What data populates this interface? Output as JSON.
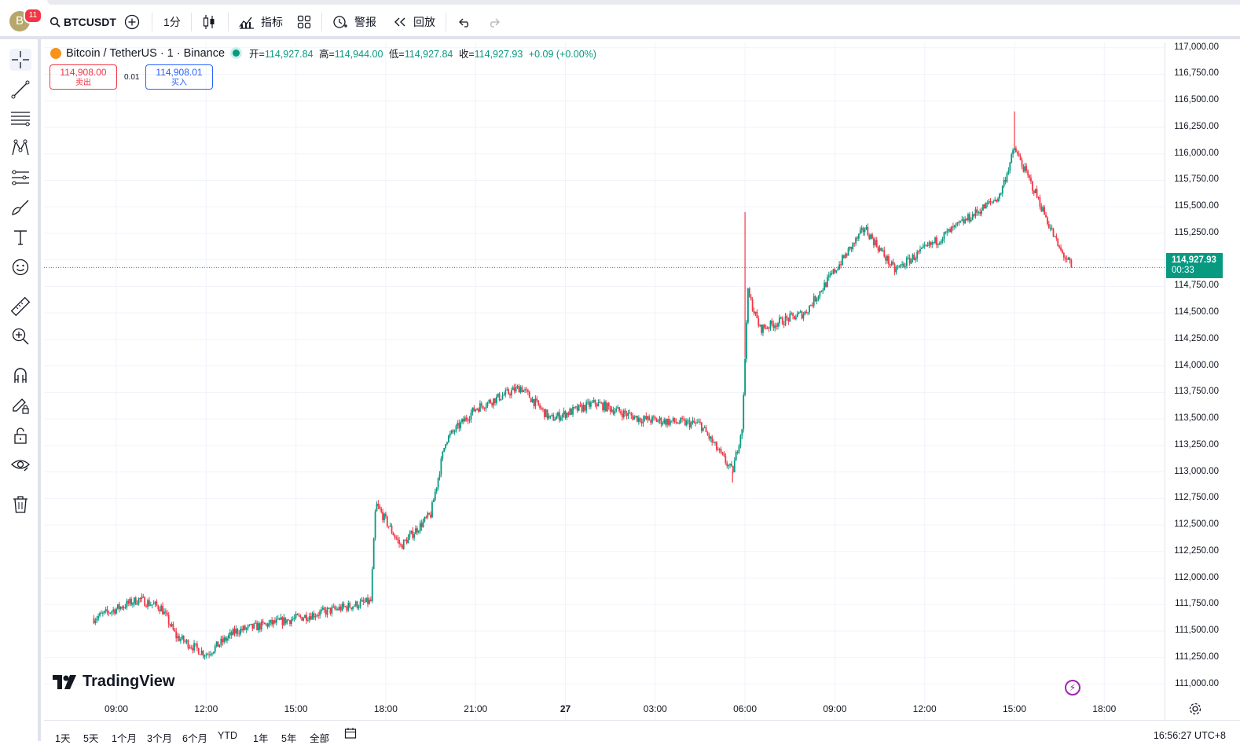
{
  "topbar": {
    "avatar_letter": "B",
    "notification_count": "11",
    "symbol": "BTCUSDT",
    "interval": "1分",
    "indicators_label": "指标",
    "alert_label": "警报",
    "replay_label": "回放"
  },
  "legend": {
    "title": "Bitcoin / TetherUS · 1 · Binance",
    "open_label": "开=",
    "open": "114,927.84",
    "high_label": "高=",
    "high": "114,944.00",
    "low_label": "低=",
    "low": "114,927.84",
    "close_label": "收=",
    "close": "114,927.93",
    "change": "+0.09 (+0.00%)"
  },
  "trade": {
    "sell_price": "114,908.00",
    "sell_label": "卖出",
    "spread": "0.01",
    "buy_price": "114,908.01",
    "buy_label": "买入"
  },
  "last_price": {
    "price": "114,927.93",
    "countdown": "00:33"
  },
  "brand": "TradingView",
  "price_axis_labels": [
    "117,000.00",
    "116,750.00",
    "116,500.00",
    "116,250.00",
    "116,000.00",
    "115,750.00",
    "115,500.00",
    "115,250.00",
    "115,000.00",
    "114,750.00",
    "114,500.00",
    "114,250.00",
    "114,000.00",
    "113,750.00",
    "113,500.00",
    "113,250.00",
    "113,000.00",
    "112,750.00",
    "112,500.00",
    "112,250.00",
    "112,000.00",
    "111,750.00",
    "111,500.00",
    "111,250.00",
    "111,000.00"
  ],
  "time_axis_labels": [
    "09:00",
    "12:00",
    "15:00",
    "18:00",
    "21:00",
    "27",
    "03:00",
    "06:00",
    "09:00",
    "12:00",
    "15:00",
    "18:00"
  ],
  "bottom": {
    "ranges": [
      "1天",
      "5天",
      "1个月",
      "3个月",
      "6个月",
      "YTD",
      "1年",
      "5年",
      "全部"
    ],
    "clock": "16:56:27 UTC+8"
  },
  "colors": {
    "up": "#089981",
    "down": "#f23645",
    "grid": "#f0f3fa"
  },
  "chart_data": {
    "type": "candlestick",
    "symbol": "BTCUSDT",
    "interval": "1",
    "ylim": [
      110900,
      117050
    ],
    "x_ticks": [
      "09:00",
      "12:00",
      "15:00",
      "18:00",
      "21:00",
      "27",
      "03:00",
      "06:00",
      "09:00",
      "12:00",
      "15:00",
      "18:00"
    ],
    "path_keypoints": [
      {
        "t": "08:15",
        "price": 111620
      },
      {
        "t": "09:45",
        "price": 111800
      },
      {
        "t": "10:30",
        "price": 111720
      },
      {
        "t": "11:00",
        "price": 111450
      },
      {
        "t": "12:00",
        "price": 111280
      },
      {
        "t": "13:00",
        "price": 111500
      },
      {
        "t": "15:00",
        "price": 111620
      },
      {
        "t": "17:30",
        "price": 111780
      },
      {
        "t": "17:40",
        "price": 112700
      },
      {
        "t": "18:30",
        "price": 112300
      },
      {
        "t": "19:30",
        "price": 112600
      },
      {
        "t": "20:00",
        "price": 113300
      },
      {
        "t": "21:00",
        "price": 113600
      },
      {
        "t": "22:30",
        "price": 113800
      },
      {
        "t": "23:30",
        "price": 113500
      },
      {
        "t": "01:00",
        "price": 113650
      },
      {
        "t": "02:30",
        "price": 113500
      },
      {
        "t": "04:30",
        "price": 113450
      },
      {
        "t": "05:35",
        "price": 113000
      },
      {
        "t": "05:55",
        "price": 113450
      },
      {
        "t": "06:05",
        "price": 114700
      },
      {
        "t": "06:30",
        "price": 114350
      },
      {
        "t": "08:00",
        "price": 114500
      },
      {
        "t": "10:00",
        "price": 115300
      },
      {
        "t": "11:00",
        "price": 114900
      },
      {
        "t": "12:00",
        "price": 115100
      },
      {
        "t": "13:30",
        "price": 115400
      },
      {
        "t": "14:30",
        "price": 115600
      },
      {
        "t": "15:00",
        "price": 116050
      },
      {
        "t": "15:45",
        "price": 115600
      },
      {
        "t": "16:30",
        "price": 115100
      },
      {
        "t": "16:56",
        "price": 114927.93
      }
    ],
    "spike_highs": [
      {
        "t": "06:00",
        "price": 115450
      },
      {
        "t": "15:00",
        "price": 116400
      }
    ],
    "spike_lows": [
      {
        "t": "05:35",
        "price": 112900
      }
    ],
    "last_close": 114927.93
  }
}
